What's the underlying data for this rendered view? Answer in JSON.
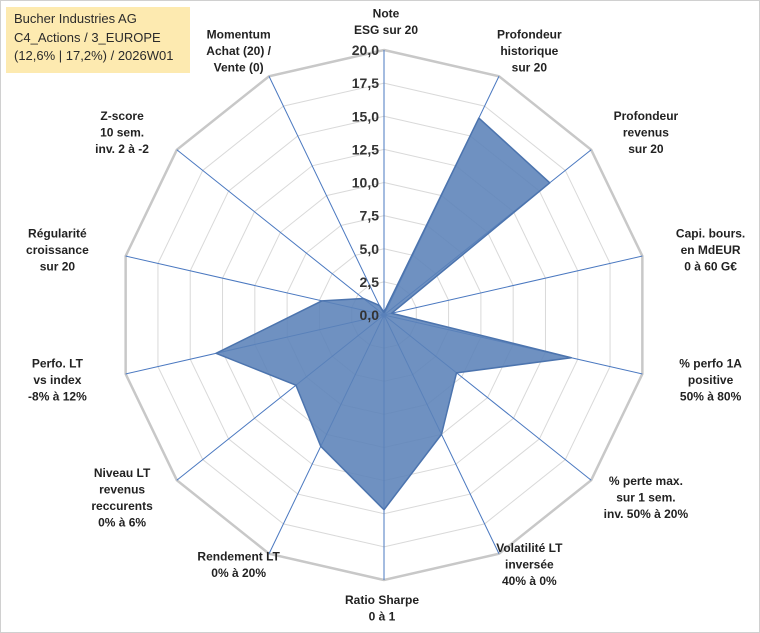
{
  "title_box": {
    "line1": "Bucher Industries AG",
    "line2": "C4_Actions / 3_EUROPE",
    "line3": "(12,6% | 17,2%) / 2026W01"
  },
  "chart_data": {
    "type": "radar",
    "title": "Bucher Industries AG",
    "rmin": 0,
    "rmax": 20,
    "tick_step": 2.5,
    "ticks": [
      "0,0",
      "2,5",
      "5,0",
      "7,5",
      "10,0",
      "12,5",
      "15,0",
      "17,5",
      "20,0"
    ],
    "axes": [
      {
        "label": [
          "Note",
          "ESG sur 20"
        ],
        "value": 0.2
      },
      {
        "label": [
          "Profondeur",
          "historique",
          "sur 20"
        ],
        "value": 16.5
      },
      {
        "label": [
          "Profondeur",
          "revenus",
          "sur 20"
        ],
        "value": 16.0
      },
      {
        "label": [
          "Capi. bours.",
          "en MdEUR",
          "0 à 60 G€"
        ],
        "value": 0.6
      },
      {
        "label": [
          "% perfo 1A",
          "positive",
          "50% à 80%"
        ],
        "value": 14.5
      },
      {
        "label": [
          "% perte max.",
          "sur 1 sem.",
          "inv. 50% à 20%"
        ],
        "value": 7.0
      },
      {
        "label": [
          "Volatilité LT",
          "inversée",
          "40% à 0%"
        ],
        "value": 10.0
      },
      {
        "label": [
          "Ratio Sharpe",
          "0 à 1"
        ],
        "value": 14.7
      },
      {
        "label": [
          "Rendement LT",
          "0% à 20%"
        ],
        "value": 11.0
      },
      {
        "label": [
          "Niveau LT",
          "revenus",
          "reccurents",
          "0% à 6%"
        ],
        "value": 8.5
      },
      {
        "label": [
          "Perfo. LT",
          "vs index",
          "-8% à 12%"
        ],
        "value": 13.0
      },
      {
        "label": [
          "Régularité",
          "croissance",
          "sur 20"
        ],
        "value": 4.8
      },
      {
        "label": [
          "Z-score",
          "10 sem.",
          "inv. 2 à -2"
        ],
        "value": 2.0
      },
      {
        "label": [
          "Momentum",
          "Achat (20) /",
          "Vente (0)"
        ],
        "value": 0.8
      }
    ],
    "colors": {
      "fill": "#5b82b8",
      "stroke": "#4c74ae",
      "spoke": "#4a78c0",
      "ring": "#d9d9d9",
      "outer_ring": "#c8c8c8"
    }
  }
}
